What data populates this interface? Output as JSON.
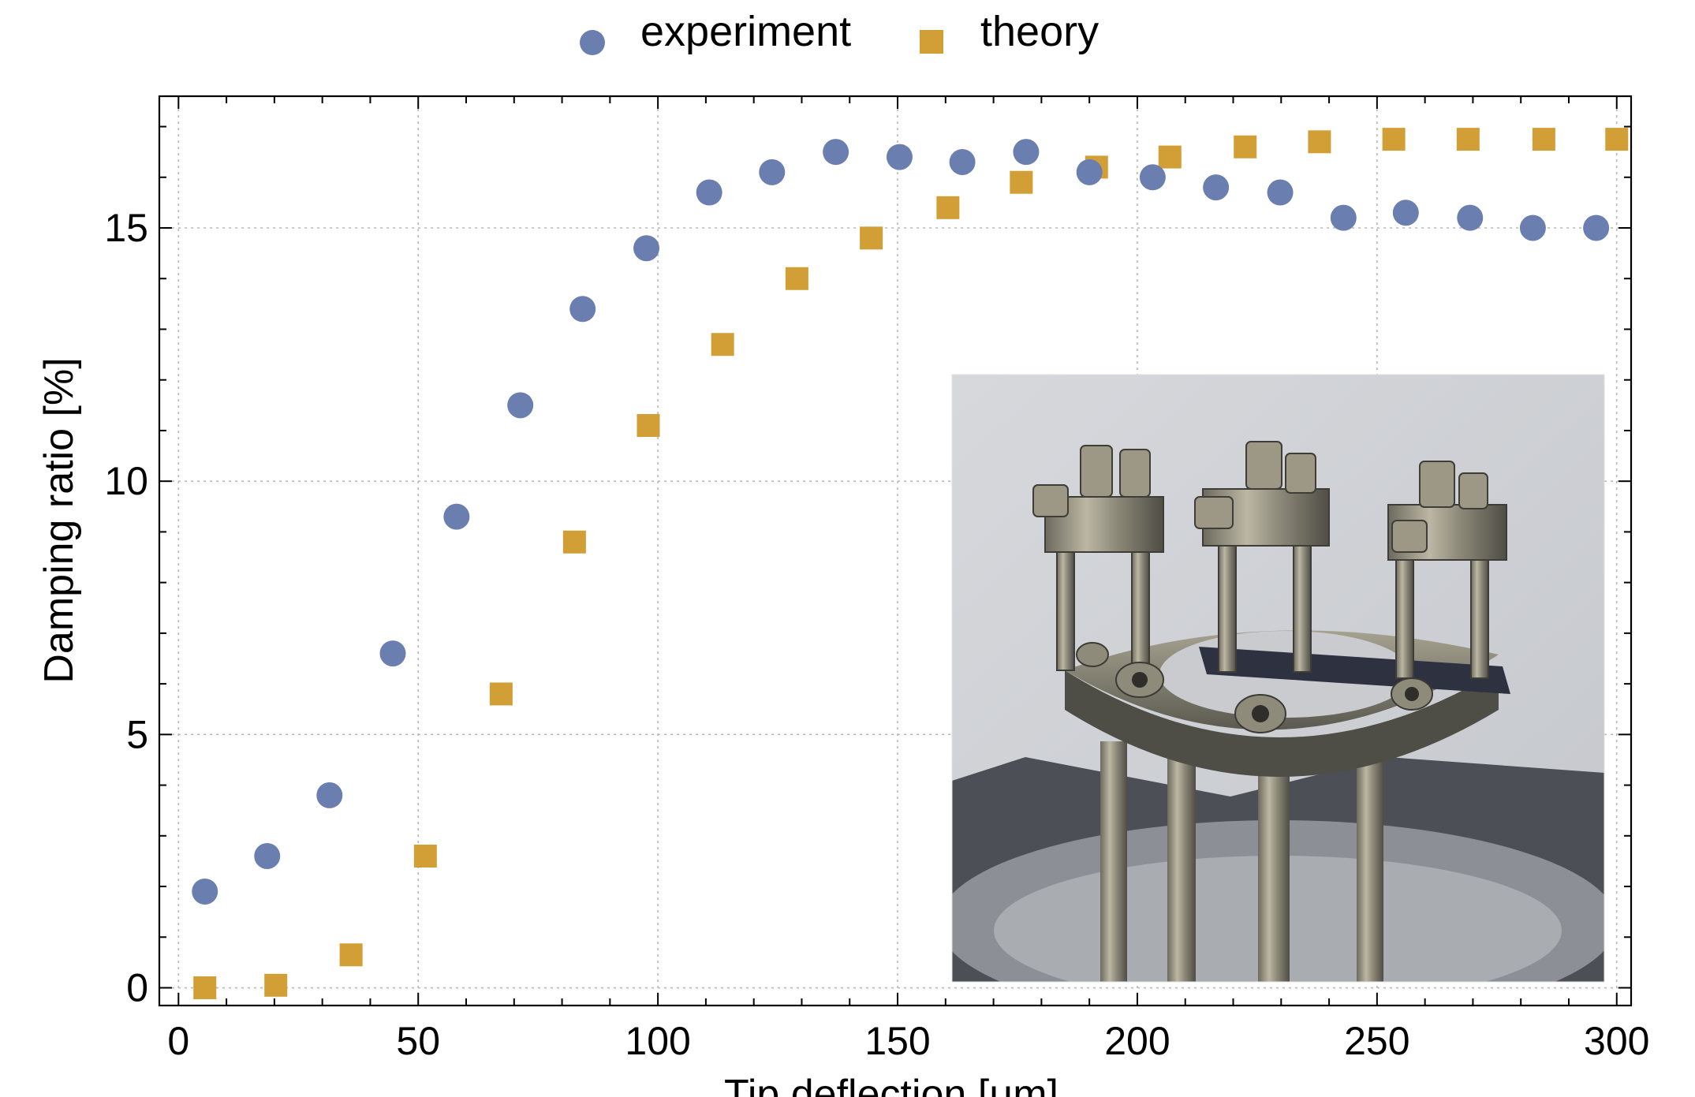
{
  "chart_data": {
    "type": "scatter",
    "title": "",
    "xlabel": "Tip deflection [μm]",
    "ylabel": "Damping ratio [%]",
    "xlim": [
      -4,
      303
    ],
    "ylim": [
      -0.35,
      17.6
    ],
    "xticks": [
      0,
      50,
      100,
      150,
      200,
      250,
      300
    ],
    "yticks": [
      0,
      5,
      10,
      15
    ],
    "grid": true,
    "legend_position": "top-center",
    "inset": "photograph of a cantilever clamping fixture",
    "series": [
      {
        "name": "experiment",
        "marker": "circle",
        "color": "#6a7fb0",
        "x": [
          5.5,
          18.5,
          31.5,
          44.7,
          58,
          71.3,
          84.3,
          97.6,
          110.7,
          123.8,
          137.1,
          150.4,
          163.5,
          176.8,
          190,
          203.2,
          216.4,
          229.8,
          243,
          256,
          269.4,
          282.5,
          295.7
        ],
        "y": [
          1.9,
          2.6,
          3.8,
          6.6,
          9.3,
          11.5,
          13.4,
          14.6,
          15.7,
          16.1,
          16.5,
          16.4,
          16.3,
          16.5,
          16.1,
          16.0,
          15.8,
          15.7,
          15.2,
          15.3,
          15.2,
          15.0,
          15.0
        ]
      },
      {
        "name": "theory",
        "marker": "square",
        "color": "#d19f35",
        "x": [
          5.5,
          20.3,
          36,
          51.5,
          67.3,
          82.6,
          98,
          113.5,
          129,
          144.5,
          160.5,
          175.8,
          191.5,
          206.8,
          222.5,
          238,
          253.5,
          269,
          284.8,
          300
        ],
        "y": [
          0.0,
          0.05,
          0.65,
          2.6,
          5.8,
          8.8,
          11.1,
          12.7,
          14.0,
          14.8,
          15.4,
          15.9,
          16.2,
          16.4,
          16.6,
          16.7,
          16.75,
          16.75,
          16.75,
          16.75
        ]
      }
    ]
  }
}
